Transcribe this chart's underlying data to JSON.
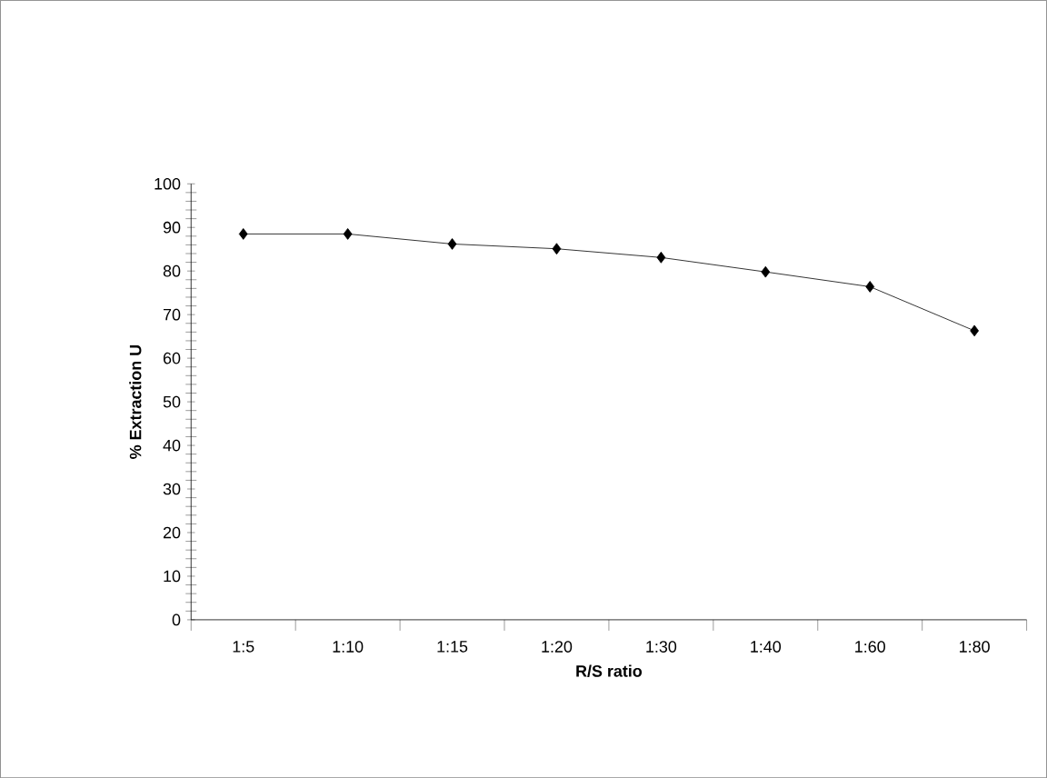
{
  "chart_data": {
    "type": "line",
    "xlabel": "R/S ratio",
    "ylabel": "% Extraction U",
    "categories": [
      "1:5",
      "1:10",
      "1:15",
      "1:20",
      "1:30",
      "1:40",
      "1:60",
      "1:80"
    ],
    "series": [
      {
        "color": "#000000",
        "values": [
          88.5,
          88.5,
          86.2,
          85.1,
          83.1,
          79.8,
          76.4,
          66.3
        ]
      }
    ],
    "ylim": [
      0,
      100
    ],
    "yticks": [
      0,
      10,
      20,
      30,
      40,
      50,
      60,
      70,
      80,
      90,
      100
    ],
    "marker": "diamond",
    "line_style": "solid",
    "grid": false
  }
}
